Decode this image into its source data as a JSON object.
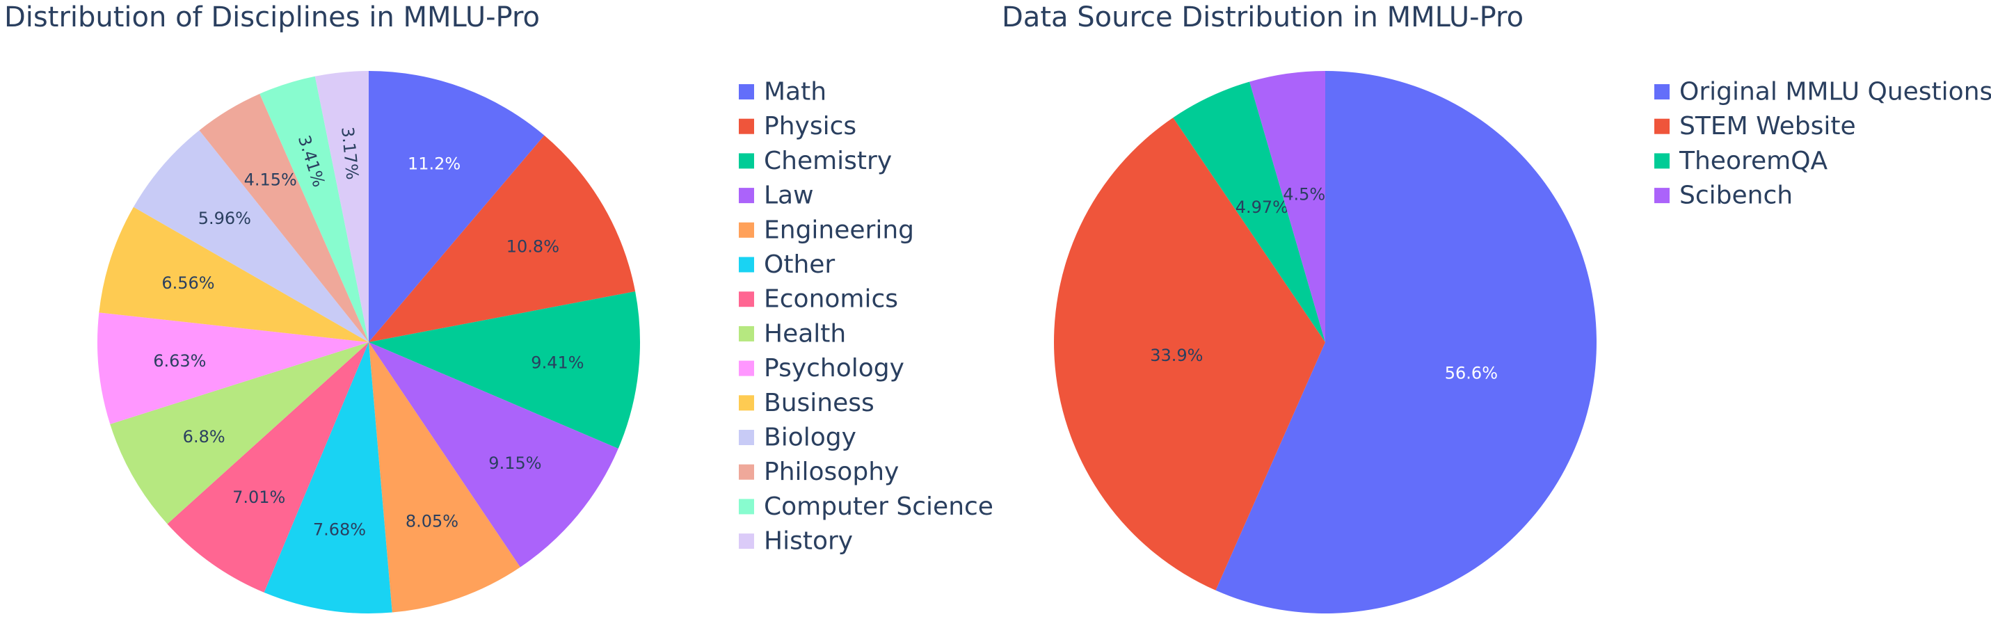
{
  "chart_data": [
    {
      "type": "pie",
      "title": "Distribution of Disciplines in MMLU-Pro",
      "legend_placement": "right",
      "slices": [
        {
          "name": "Math",
          "value": 11.2,
          "label": "11.2%",
          "color": "#636efa"
        },
        {
          "name": "Physics",
          "value": 10.8,
          "label": "10.8%",
          "color": "#ef553b"
        },
        {
          "name": "Chemistry",
          "value": 9.41,
          "label": "9.41%",
          "color": "#00cc96"
        },
        {
          "name": "Law",
          "value": 9.15,
          "label": "9.15%",
          "color": "#ab63fa"
        },
        {
          "name": "Engineering",
          "value": 8.05,
          "label": "8.05%",
          "color": "#ffa15a"
        },
        {
          "name": "Other",
          "value": 7.68,
          "label": "7.68%",
          "color": "#19d3f3"
        },
        {
          "name": "Economics",
          "value": 7.01,
          "label": "7.01%",
          "color": "#ff6692"
        },
        {
          "name": "Health",
          "value": 6.8,
          "label": "6.8%",
          "color": "#b6e880"
        },
        {
          "name": "Psychology",
          "value": 6.63,
          "label": "6.63%",
          "color": "#ff97ff"
        },
        {
          "name": "Business",
          "value": 6.56,
          "label": "6.56%",
          "color": "#fecb52"
        },
        {
          "name": "Biology",
          "value": 5.96,
          "label": "5.96%",
          "color": "#c8cbf6"
        },
        {
          "name": "Philosophy",
          "value": 4.15,
          "label": "4.15%",
          "color": "#efa89a"
        },
        {
          "name": "Computer Science",
          "value": 3.41,
          "label": "3.41%",
          "color": "#88fccf"
        },
        {
          "name": "History",
          "value": 3.17,
          "label": "3.17%",
          "color": "#dbcbf8"
        }
      ]
    },
    {
      "type": "pie",
      "title": "Data Source Distribution in MMLU-Pro",
      "legend_placement": "right",
      "slices": [
        {
          "name": "Original MMLU Questions",
          "value": 56.6,
          "label": "56.6%",
          "color": "#636efa"
        },
        {
          "name": "STEM Website",
          "value": 33.9,
          "label": "33.9%",
          "color": "#ef553b"
        },
        {
          "name": "TheoremQA",
          "value": 4.97,
          "label": "4.97%",
          "color": "#00cc96"
        },
        {
          "name": "Scibench",
          "value": 4.5,
          "label": "4.5%",
          "color": "#ab63fa"
        }
      ]
    }
  ]
}
